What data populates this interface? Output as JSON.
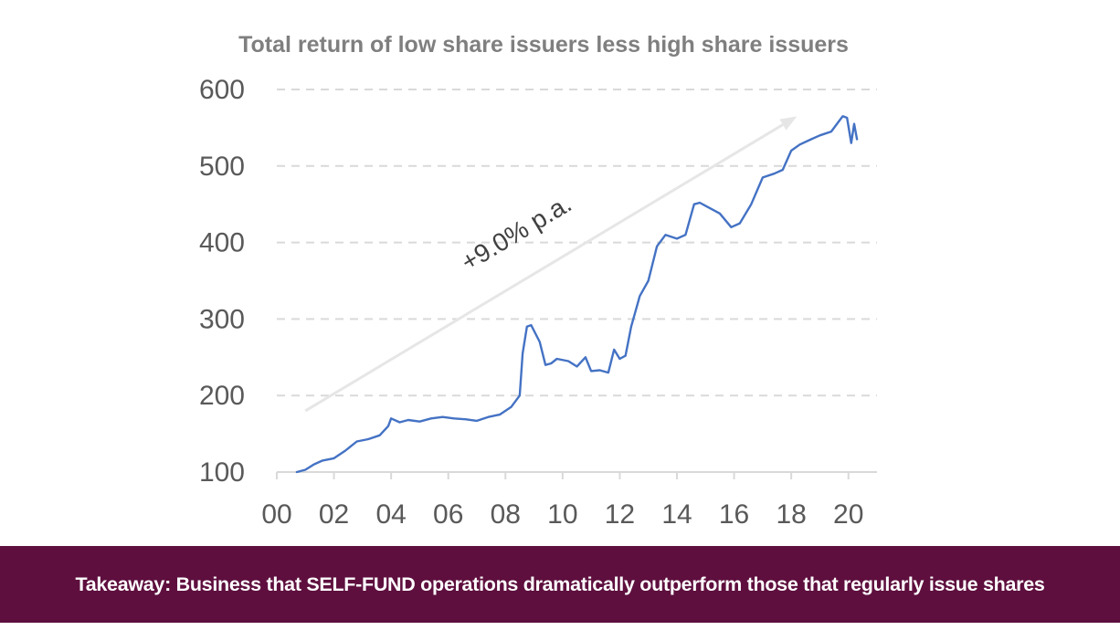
{
  "chart_data": {
    "type": "line",
    "title": "Total return of low share issuers less high share issuers",
    "xlabel": "",
    "ylabel": "",
    "xlim": [
      2000,
      2021
    ],
    "ylim": [
      100,
      600
    ],
    "x_ticks": [
      2000,
      2002,
      2004,
      2006,
      2008,
      2010,
      2012,
      2014,
      2016,
      2018,
      2020
    ],
    "x_tick_labels": [
      "00",
      "02",
      "04",
      "06",
      "08",
      "10",
      "12",
      "14",
      "16",
      "18",
      "20"
    ],
    "y_ticks": [
      100,
      200,
      300,
      400,
      500,
      600
    ],
    "y_tick_labels": [
      "100",
      "200",
      "300",
      "400",
      "500",
      "600"
    ],
    "grid": "horizontal dashed",
    "series": [
      {
        "color": "#4472c4",
        "x": [
          2000.7,
          2001.0,
          2001.3,
          2001.6,
          2002.0,
          2002.4,
          2002.8,
          2003.2,
          2003.6,
          2003.9,
          2004.0,
          2004.3,
          2004.6,
          2005.0,
          2005.4,
          2005.8,
          2006.2,
          2006.6,
          2007.0,
          2007.4,
          2007.8,
          2008.2,
          2008.5,
          2008.6,
          2008.75,
          2008.9,
          2009.2,
          2009.4,
          2009.6,
          2009.8,
          2010.2,
          2010.5,
          2010.8,
          2011.0,
          2011.3,
          2011.6,
          2011.8,
          2012.0,
          2012.2,
          2012.4,
          2012.7,
          2013.0,
          2013.3,
          2013.6,
          2014.0,
          2014.3,
          2014.6,
          2014.8,
          2015.0,
          2015.5,
          2015.9,
          2016.2,
          2016.6,
          2017.0,
          2017.4,
          2017.7,
          2018.0,
          2018.3,
          2018.7,
          2019.0,
          2019.4,
          2019.7,
          2019.8,
          2019.95,
          2020.1,
          2020.2,
          2020.3
        ],
        "values": [
          100,
          103,
          110,
          115,
          118,
          128,
          140,
          143,
          148,
          160,
          170,
          165,
          168,
          166,
          170,
          172,
          170,
          169,
          167,
          172,
          175,
          185,
          200,
          255,
          290,
          292,
          270,
          240,
          242,
          248,
          245,
          238,
          250,
          232,
          233,
          230,
          260,
          248,
          252,
          290,
          330,
          350,
          395,
          410,
          405,
          410,
          450,
          452,
          448,
          438,
          420,
          425,
          450,
          485,
          490,
          495,
          520,
          528,
          535,
          540,
          545,
          560,
          565,
          563,
          530,
          555,
          535
        ]
      }
    ],
    "annotations": [
      {
        "text": "+9.0% p.a.",
        "type": "trend-arrow",
        "x_from": 2001.0,
        "y_from": 180,
        "x_to": 2018.2,
        "y_to": 565
      }
    ]
  },
  "takeaway": {
    "text": "Takeaway: Business that SELF-FUND operations dramatically outperform those that regularly issue shares"
  },
  "colors": {
    "line": "#4472c4",
    "arrow": "#e6e6e6",
    "grid": "#d9d9d9",
    "axis": "#d9d9d9",
    "banner": "#5e0f3e",
    "banner_text": "#ffffff",
    "title": "#7f7f7f",
    "tick_text": "#595959"
  }
}
